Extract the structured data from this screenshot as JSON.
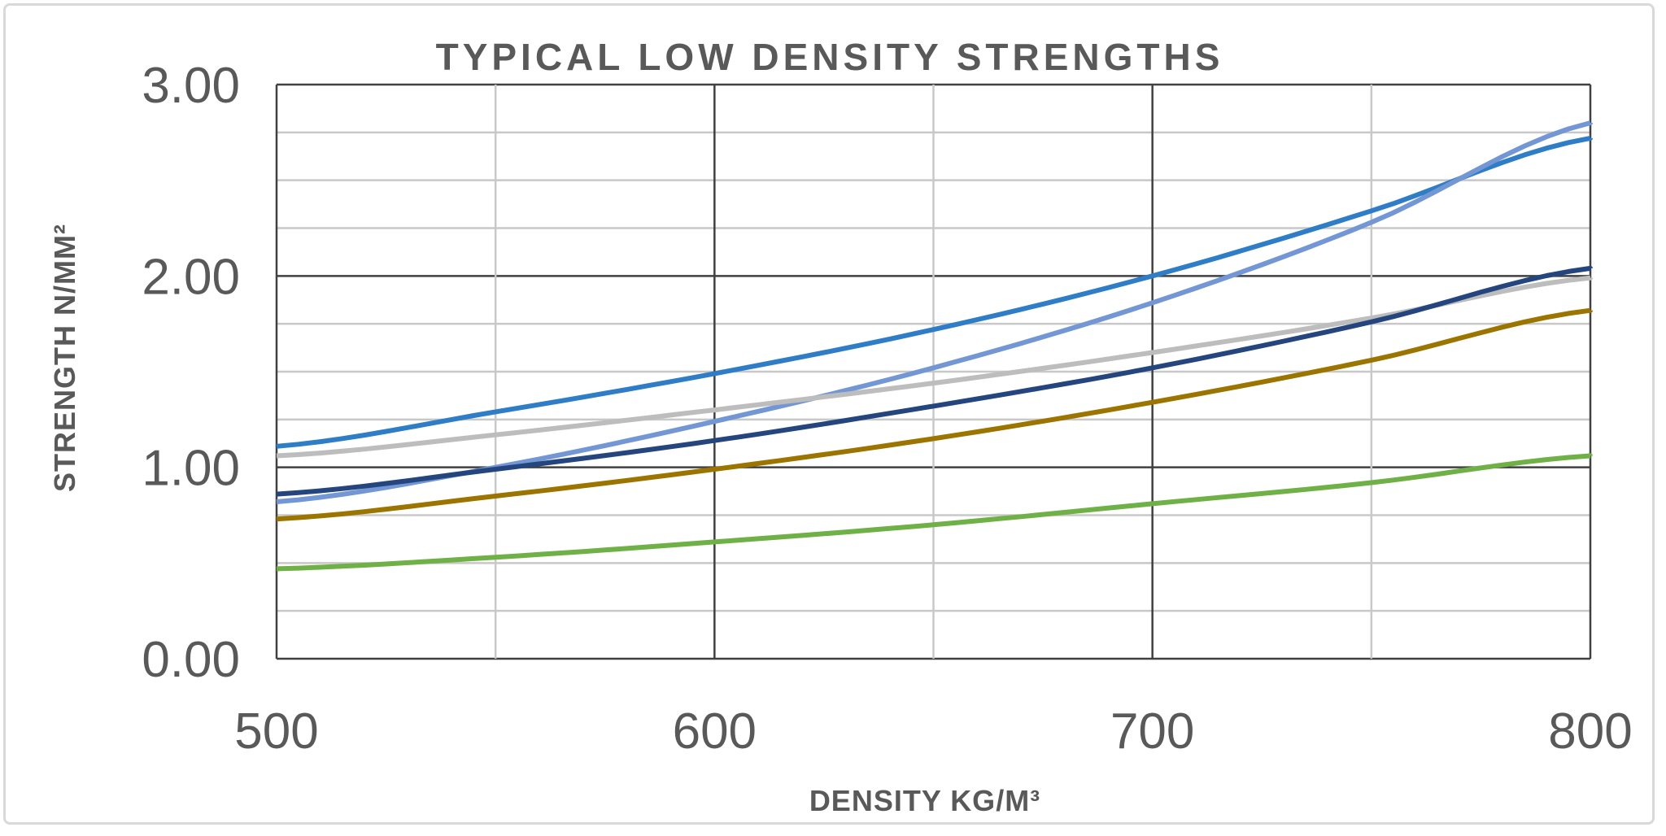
{
  "chart_data": {
    "type": "line",
    "title": "TYPICAL LOW DENSITY STRENGTHS",
    "xlabel": "DENSITY KG/M³",
    "ylabel": "STRENGTH N/MM²",
    "xlim": [
      500,
      800
    ],
    "ylim": [
      0,
      3
    ],
    "x_ticks": [
      "500",
      "600",
      "700",
      "800"
    ],
    "y_ticks": [
      "0.00",
      "1.00",
      "2.00",
      "3.00"
    ],
    "grid": true,
    "legend": "none",
    "x": [
      500,
      550,
      600,
      650,
      700,
      750,
      800
    ],
    "series": [
      {
        "color": "#2e7dc6",
        "values": [
          1.11,
          1.29,
          1.49,
          1.72,
          2.0,
          2.34,
          2.72
        ]
      },
      {
        "color": "#7396d4",
        "values": [
          0.82,
          1.0,
          1.24,
          1.52,
          1.86,
          2.28,
          2.8
        ]
      },
      {
        "color": "#bdbdbd",
        "values": [
          1.06,
          1.17,
          1.3,
          1.44,
          1.6,
          1.78,
          1.99
        ]
      },
      {
        "color": "#25457e",
        "values": [
          0.86,
          0.99,
          1.14,
          1.32,
          1.52,
          1.76,
          2.04
        ]
      },
      {
        "color": "#9c7400",
        "values": [
          0.73,
          0.85,
          0.99,
          1.15,
          1.34,
          1.56,
          1.82
        ]
      },
      {
        "color": "#6fb047",
        "values": [
          0.47,
          0.53,
          0.61,
          0.7,
          0.81,
          0.92,
          1.06
        ]
      }
    ]
  }
}
